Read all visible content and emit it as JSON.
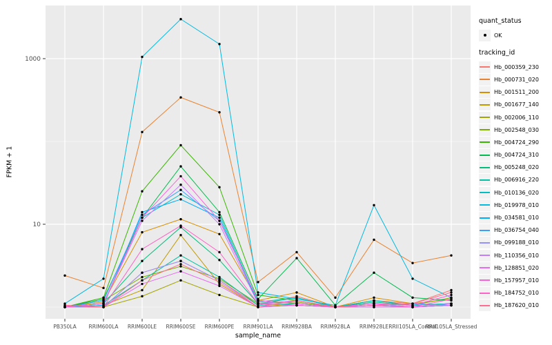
{
  "style": {
    "background": "#FFFFFF",
    "panel_background": "#EBEBEB",
    "grid_color": "#FFFFFF",
    "tick_color": "#333333",
    "axis_text_color": "#4D4D4D",
    "title_color": "#000000",
    "point_color": "#000000"
  },
  "chart_data": {
    "type": "line",
    "title": "",
    "xlabel": "sample_name",
    "ylabel": "FPKM + 1",
    "y_scale": "log10",
    "ylim": [
      1,
      4400
    ],
    "grid": true,
    "legend_position": "right",
    "marker": "black-point",
    "y_ticks": [
      {
        "value": 10,
        "label": "10"
      },
      {
        "value": 1000,
        "label": "1000"
      }
    ],
    "y_minor": [
      1,
      100
    ],
    "categories": [
      "PB350LA",
      "RRIM600LA",
      "RRIM600LE",
      "RRIM600SE",
      "RRIM600PE",
      "RRIM901LA",
      "RRIM928BA",
      "RRIM928LA",
      "RRIM928LE",
      "RRII105LA_Control",
      "RRII105LA_Stressed"
    ],
    "legend": {
      "quant_status": {
        "title": "quant_status",
        "items": [
          {
            "label": "OK",
            "shape": "point"
          }
        ]
      },
      "tracking_id": {
        "title": "tracking_id"
      }
    },
    "series": [
      {
        "name": "Hb_000359_230",
        "color": "#F8766D",
        "values": [
          1.05,
          1.0,
          2.6,
          3.6,
          2.1,
          1.05,
          1.35,
          1.0,
          1.2,
          1.1,
          1.6
        ]
      },
      {
        "name": "Hb_000731_020",
        "color": "#EA8331",
        "values": [
          2.4,
          1.7,
          130,
          340,
          225,
          2.0,
          4.6,
          1.3,
          6.5,
          3.4,
          4.2
        ]
      },
      {
        "name": "Hb_001511_200",
        "color": "#D89000",
        "values": [
          1.0,
          1.15,
          8.0,
          11.5,
          7.6,
          1.2,
          1.5,
          1.0,
          1.3,
          1.1,
          1.25
        ]
      },
      {
        "name": "Hb_001677_140",
        "color": "#C09B00",
        "values": [
          1.0,
          1.05,
          1.6,
          7.4,
          1.9,
          1.0,
          1.1,
          1.0,
          1.05,
          1.0,
          1.05
        ]
      },
      {
        "name": "Hb_002006_110",
        "color": "#A3A500",
        "values": [
          1.0,
          1.0,
          1.35,
          2.1,
          1.4,
          1.0,
          1.05,
          1.0,
          1.0,
          1.0,
          1.1
        ]
      },
      {
        "name": "Hb_002548_030",
        "color": "#7CAE00",
        "values": [
          1.0,
          1.2,
          2.3,
          3.1,
          2.2,
          1.1,
          1.15,
          1.0,
          1.2,
          1.05,
          1.3
        ]
      },
      {
        "name": "Hb_004724_290",
        "color": "#39B600",
        "values": [
          1.0,
          1.3,
          25,
          90,
          28,
          1.4,
          1.2,
          1.0,
          1.1,
          1.05,
          1.1
        ]
      },
      {
        "name": "Hb_004724_310",
        "color": "#00BB4E",
        "values": [
          1.0,
          1.25,
          12,
          50,
          14,
          1.25,
          3.9,
          1.05,
          2.6,
          1.3,
          1.2
        ]
      },
      {
        "name": "Hb_005248_020",
        "color": "#00BF7D",
        "values": [
          1.0,
          1.1,
          3.6,
          9.2,
          3.7,
          1.1,
          1.3,
          1.0,
          1.15,
          1.05,
          1.1
        ]
      },
      {
        "name": "Hb_006916_220",
        "color": "#00C1A3",
        "values": [
          1.0,
          1.05,
          2.1,
          4.2,
          2.3,
          1.05,
          1.1,
          1.0,
          1.05,
          1.0,
          1.05
        ]
      },
      {
        "name": "Hb_010136_020",
        "color": "#00BFC4",
        "values": [
          1.0,
          1.1,
          12,
          23,
          13,
          1.15,
          1.3,
          1.0,
          1.2,
          1.05,
          1.1
        ]
      },
      {
        "name": "Hb_019978_010",
        "color": "#00BAE0",
        "values": [
          1.1,
          2.2,
          1050,
          3000,
          1500,
          1.5,
          1.25,
          1.05,
          17,
          2.2,
          1.3
        ]
      },
      {
        "name": "Hb_034581_010",
        "color": "#00B0F6",
        "values": [
          1.0,
          1.05,
          14,
          20,
          12,
          1.1,
          1.05,
          1.0,
          1.1,
          1.0,
          1.05
        ]
      },
      {
        "name": "Hb_036754_040",
        "color": "#35A2FF",
        "values": [
          1.0,
          1.2,
          13,
          26,
          11,
          1.2,
          1.1,
          1.0,
          1.05,
          1.1,
          1.05
        ]
      },
      {
        "name": "Hb_099188_010",
        "color": "#9590FF",
        "values": [
          1.0,
          1.0,
          2.6,
          3.6,
          2.1,
          1.0,
          1.05,
          1.0,
          1.0,
          1.0,
          1.05
        ]
      },
      {
        "name": "Hb_110356_010",
        "color": "#C77CFF",
        "values": [
          1.0,
          1.1,
          11,
          30,
          10,
          1.1,
          1.2,
          1.0,
          1.1,
          1.0,
          1.1
        ]
      },
      {
        "name": "Hb_128851_020",
        "color": "#E76BF3",
        "values": [
          1.0,
          1.0,
          1.9,
          2.7,
          1.8,
          1.0,
          1.05,
          1.0,
          1.0,
          1.0,
          1.05
        ]
      },
      {
        "name": "Hb_157957_010",
        "color": "#FA62DB",
        "values": [
          1.0,
          1.1,
          12,
          38,
          11,
          1.2,
          1.1,
          1.0,
          1.1,
          1.05,
          1.4
        ]
      },
      {
        "name": "Hb_184752_010",
        "color": "#FF61C7",
        "values": [
          1.0,
          1.0,
          5.0,
          9.6,
          4.6,
          1.1,
          1.05,
          1.0,
          1.05,
          1.0,
          1.25
        ]
      },
      {
        "name": "Hb_187620_010",
        "color": "#FF6C90",
        "values": [
          1.05,
          1.0,
          2.1,
          3.3,
          2.0,
          1.0,
          1.2,
          1.0,
          1.05,
          1.1,
          1.5
        ]
      }
    ]
  }
}
